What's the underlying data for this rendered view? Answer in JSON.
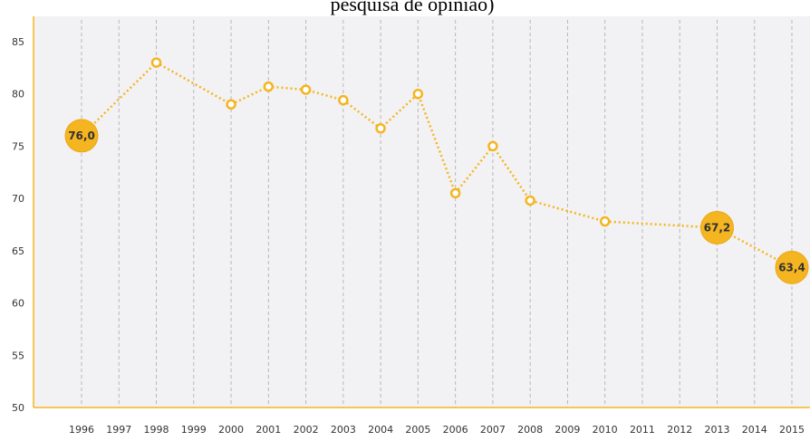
{
  "chart_data": {
    "type": "line",
    "title": "pesquisa de opinião)",
    "x": [
      1996,
      1998,
      2000,
      2001,
      2002,
      2003,
      2004,
      2005,
      2006,
      2007,
      2008,
      2010,
      2013,
      2015
    ],
    "values": [
      76.0,
      83,
      79,
      80.7,
      80.4,
      79.4,
      76.7,
      80,
      70.5,
      75,
      69.8,
      67.8,
      67.2,
      63.4
    ],
    "value_labels": [
      "76,0",
      null,
      null,
      null,
      null,
      null,
      null,
      null,
      null,
      null,
      null,
      null,
      "67,2",
      "63,4"
    ],
    "color": "#f5b520",
    "xlim": [
      1996,
      2015
    ],
    "xticks": [
      1996,
      1997,
      1998,
      1999,
      2000,
      2001,
      2002,
      2003,
      2004,
      2005,
      2006,
      2007,
      2008,
      2009,
      2010,
      2011,
      2012,
      2013,
      2014,
      2015
    ],
    "ylim": [
      50,
      85
    ],
    "yticks": [
      50,
      55,
      60,
      65,
      70,
      75,
      80,
      85
    ],
    "grid": true
  }
}
